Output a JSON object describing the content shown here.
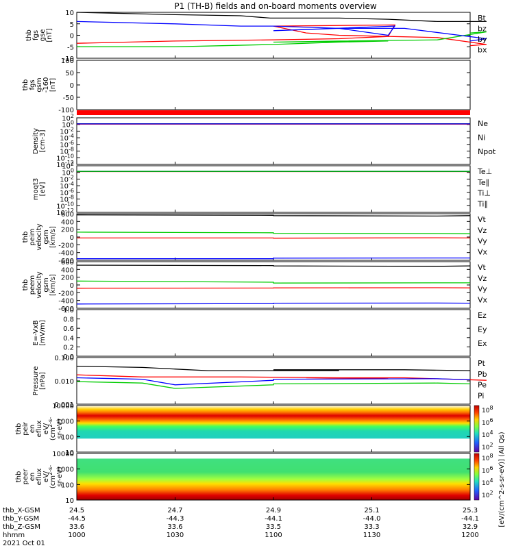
{
  "title": "P1  (TH-B) fields and on-board moments overview",
  "colors": {
    "black": "#000000",
    "red": "#ff0000",
    "green": "#00cc00",
    "blue": "#0000ff"
  },
  "chart_data": [
    {
      "type": "line",
      "id": "fgs",
      "ylabel_lines": [
        "thb",
        "fgs",
        "gse",
        "[nT]"
      ],
      "ylim": [
        -10,
        10
      ],
      "yticks": [
        "10",
        "5",
        "0",
        "-5",
        "-10"
      ],
      "series": [
        {
          "name": "Bt",
          "color": "black",
          "points": [
            [
              1000,
              10
            ],
            [
              1030,
              9
            ],
            [
              1050,
              8.5
            ],
            [
              1059,
              7.5
            ],
            [
              1070,
              7.5
            ],
            [
              1100,
              7.5
            ],
            [
              1120,
              7.5
            ],
            [
              1135,
              7
            ],
            [
              1150,
              6
            ],
            [
              1165,
              6
            ],
            [
              1200,
              6
            ]
          ]
        },
        {
          "name": "bz",
          "color": "red",
          "points": [
            [
              1000,
              -3.5
            ],
            [
              1030,
              -2.5
            ],
            [
              1060,
              -2
            ],
            [
              1080,
              -1.5
            ],
            [
              1095,
              -0.5
            ],
            [
              1097,
              4.5
            ],
            [
              1100,
              4
            ],
            [
              1110,
              1
            ],
            [
              1120,
              0
            ],
            [
              1150,
              -1
            ],
            [
              1165,
              -4
            ],
            [
              1200,
              -4.5
            ]
          ]
        },
        {
          "name": "by",
          "color": "green",
          "points": [
            [
              1000,
              -5
            ],
            [
              1030,
              -5
            ],
            [
              1060,
              -4
            ],
            [
              1080,
              -3
            ],
            [
              1095,
              -2.5
            ],
            [
              1100,
              -3
            ],
            [
              1120,
              -2.5
            ],
            [
              1150,
              -2
            ],
            [
              1165,
              1.5
            ],
            [
              1200,
              1
            ]
          ]
        },
        {
          "name": "bx",
          "color": "blue",
          "points": [
            [
              1000,
              6
            ],
            [
              1030,
              5
            ],
            [
              1050,
              4
            ],
            [
              1060,
              4
            ],
            [
              1080,
              3
            ],
            [
              1095,
              0
            ],
            [
              1097,
              4
            ],
            [
              1100,
              2
            ],
            [
              1120,
              3
            ],
            [
              1140,
              3
            ],
            [
              1165,
              -1.5
            ],
            [
              1200,
              -2.5
            ]
          ]
        }
      ]
    },
    {
      "type": "line",
      "id": "gsm",
      "ylabel_lines": [
        "thb",
        "fgs",
        "gsm",
        "-160",
        "[nT]"
      ],
      "ylim": [
        -130,
        110
      ],
      "yticks": [
        "100",
        "50",
        "0",
        "-50",
        "-100"
      ],
      "series": []
    },
    {
      "type": "line",
      "id": "density",
      "ylabel_lines": [
        "Density",
        "[cm-3]"
      ],
      "ylim_log": [
        -12,
        2
      ],
      "yticks": [
        "10^2",
        "10^0",
        "10^-2",
        "10^-4",
        "10^-6",
        "10^-8",
        "10^-10",
        "10^-12"
      ],
      "series": [
        {
          "name": "Ne",
          "color": "red",
          "points": [
            [
              1000,
              1.3
            ],
            [
              1200,
              1.3
            ]
          ]
        },
        {
          "name": "Ni",
          "color": "black",
          "points": [
            [
              1000,
              1.6
            ],
            [
              1200,
              1.6
            ]
          ]
        },
        {
          "name": "Npot",
          "color": "blue",
          "points": [
            [
              1000,
              1.5
            ],
            [
              1200,
              1.5
            ]
          ]
        }
      ]
    },
    {
      "type": "line",
      "id": "temp",
      "ylabel_lines": [
        "moqt3",
        "[eV]"
      ],
      "ylim_log": [
        -12,
        2
      ],
      "yticks": [
        "10^2",
        "10^0",
        "10^-2",
        "10^-4",
        "10^-6",
        "10^-8",
        "10^-10",
        "10^-12"
      ],
      "series": [
        {
          "name": "Te⊥",
          "color": "red",
          "points": [
            [
              1000,
              1.8
            ],
            [
              1200,
              1.8
            ]
          ]
        },
        {
          "name": "Te∥",
          "color": "black",
          "points": [
            [
              1000,
              2.0
            ],
            [
              1200,
              2.0
            ]
          ]
        },
        {
          "name": "Ti⊥",
          "color": "blue",
          "points": [
            [
              1000,
              2.3
            ],
            [
              1200,
              2.3
            ]
          ]
        },
        {
          "name": "Ti∥",
          "color": "green",
          "points": [
            [
              1000,
              2.1
            ],
            [
              1200,
              2.1
            ]
          ]
        }
      ]
    },
    {
      "type": "line",
      "id": "peim",
      "ylabel_lines": [
        "thb",
        "peim",
        "velocity",
        "gsm",
        "[km/s]"
      ],
      "ylim": [
        -600,
        600
      ],
      "yticks": [
        "600",
        "400",
        "200",
        "0",
        "-200",
        "-400",
        "-600"
      ],
      "series": [
        {
          "name": "Vt",
          "color": "black",
          "points": [
            [
              1000,
              570
            ],
            [
              1060,
              560
            ],
            [
              1100,
              550
            ],
            [
              1150,
              540
            ],
            [
              1200,
              550
            ]
          ]
        },
        {
          "name": "Vz",
          "color": "red",
          "points": [
            [
              1000,
              -25
            ],
            [
              1060,
              -25
            ],
            [
              1100,
              -30
            ],
            [
              1150,
              -20
            ],
            [
              1200,
              -25
            ]
          ]
        },
        {
          "name": "Vy",
          "color": "green",
          "points": [
            [
              1000,
              125
            ],
            [
              1060,
              110
            ],
            [
              1100,
              95
            ],
            [
              1150,
              90
            ],
            [
              1200,
              85
            ]
          ]
        },
        {
          "name": "Vx",
          "color": "blue",
          "points": [
            [
              1000,
              -560
            ],
            [
              1060,
              -560
            ],
            [
              1100,
              -545
            ],
            [
              1150,
              -540
            ],
            [
              1200,
              -540
            ]
          ]
        }
      ]
    },
    {
      "type": "line",
      "id": "peem",
      "ylabel_lines": [
        "thb",
        "peem",
        "velocity",
        "gsm",
        "[km/s]"
      ],
      "ylim": [
        -600,
        600
      ],
      "yticks": [
        "600",
        "400",
        "200",
        "0",
        "-200",
        "-400",
        "-600"
      ],
      "series": [
        {
          "name": "Vt",
          "color": "black",
          "points": [
            [
              1000,
              510
            ],
            [
              1060,
              500
            ],
            [
              1100,
              490
            ],
            [
              1150,
              480
            ],
            [
              1200,
              490
            ]
          ]
        },
        {
          "name": "Vz",
          "color": "red",
          "points": [
            [
              1000,
              -85
            ],
            [
              1060,
              -80
            ],
            [
              1100,
              -75
            ],
            [
              1150,
              -70
            ],
            [
              1200,
              -75
            ]
          ]
        },
        {
          "name": "Vy",
          "color": "green",
          "points": [
            [
              1000,
              100
            ],
            [
              1060,
              70
            ],
            [
              1100,
              50
            ],
            [
              1150,
              55
            ],
            [
              1200,
              55
            ]
          ]
        },
        {
          "name": "Vx",
          "color": "blue",
          "points": [
            [
              1000,
              -490
            ],
            [
              1060,
              -480
            ],
            [
              1100,
              -470
            ],
            [
              1150,
              -465
            ],
            [
              1200,
              -470
            ]
          ]
        }
      ]
    },
    {
      "type": "line",
      "id": "efield",
      "ylabel_lines": [
        "E=-VxB",
        "[mV/m]"
      ],
      "ylim": [
        0,
        1
      ],
      "yticks": [
        "1.0",
        "0.8",
        "0.6",
        "0.4",
        "0.2",
        "0.0"
      ],
      "series": [
        {
          "name": "Ez",
          "color": "red",
          "points": []
        },
        {
          "name": "Ey",
          "color": "green",
          "points": []
        },
        {
          "name": "Ex",
          "color": "blue",
          "points": []
        }
      ]
    },
    {
      "type": "line",
      "id": "pressure",
      "ylabel_lines": [
        "Pressure",
        "[nPa]"
      ],
      "ylim_log": [
        -3,
        -0.7
      ],
      "yticks": [
        "0.100",
        "0.010",
        "0.001"
      ],
      "series": [
        {
          "name": "Pt",
          "color": "black",
          "points": [
            [
              1000,
              0.075
            ],
            [
              1020,
              0.065
            ],
            [
              1040,
              0.045
            ],
            [
              1080,
              0.045
            ],
            [
              1100,
              0.05
            ],
            [
              1140,
              0.05
            ],
            [
              1160,
              0.045
            ],
            [
              1200,
              0.045
            ]
          ]
        },
        {
          "name": "Pb",
          "color": "red",
          "points": [
            [
              1000,
              0.028
            ],
            [
              1020,
              0.022
            ],
            [
              1050,
              0.022
            ],
            [
              1080,
              0.02
            ],
            [
              1095,
              0.018
            ],
            [
              1110,
              0.02
            ],
            [
              1140,
              0.02
            ],
            [
              1165,
              0.015
            ],
            [
              1200,
              0.016
            ]
          ]
        },
        {
          "name": "Pe",
          "color": "green",
          "points": [
            [
              1000,
              0.013
            ],
            [
              1020,
              0.011
            ],
            [
              1030,
              0.006
            ],
            [
              1060,
              0.009
            ],
            [
              1100,
              0.01
            ],
            [
              1150,
              0.011
            ],
            [
              1200,
              0.01
            ]
          ]
        },
        {
          "name": "Pi",
          "color": "blue",
          "points": [
            [
              1000,
              0.02
            ],
            [
              1020,
              0.017
            ],
            [
              1030,
              0.009
            ],
            [
              1060,
              0.015
            ],
            [
              1100,
              0.017
            ],
            [
              1150,
              0.018
            ],
            [
              1200,
              0.016
            ]
          ]
        }
      ]
    },
    {
      "type": "heatmap",
      "id": "peir",
      "ylabel_lines": [
        "thb",
        "peir",
        "en",
        "eflux",
        "eV/",
        "(cm^2-s-",
        "sr-eV)"
      ],
      "ylim_log": [
        0.8,
        4.2
      ],
      "yticks": [
        "10000",
        "1000",
        "100",
        "10"
      ]
    },
    {
      "type": "heatmap",
      "id": "peer",
      "ylabel_lines": [
        "thb",
        "peer",
        "en",
        "eflux",
        "eV/",
        "(cm^2-s-",
        "sr-eV)"
      ],
      "ylim_log": [
        0.8,
        4.2
      ],
      "yticks": [
        "10000",
        "1000",
        "100",
        "10"
      ]
    }
  ],
  "legends": {
    "fgs": [
      "Bt",
      "bz",
      "by",
      "bx"
    ],
    "density": [
      "Ne",
      "Ni",
      "Npot"
    ],
    "temp": [
      "Te⊥",
      "Te∥",
      "Ti⊥",
      "Ti∥"
    ],
    "peim": [
      "Vt",
      "Vz",
      "Vy",
      "Vx"
    ],
    "peem": [
      "Vt",
      "Vz",
      "Vy",
      "Vx"
    ],
    "efield": [
      "Ez",
      "Ey",
      "Ex"
    ],
    "pressure": [
      "Pt",
      "Pb",
      "Pe",
      "Pi"
    ]
  },
  "colorbar": {
    "ticks": [
      "10^8",
      "10^6",
      "10^4",
      "10^2"
    ],
    "label": "[eV/(cm^2-s-sr-eV)] (All Qs)"
  },
  "x_axis": {
    "row_labels": [
      "thb_X-GSM",
      "thb_Y-GSM",
      "thb_Z-GSM",
      "hhmm"
    ],
    "date": "2021 Oct 01",
    "columns": [
      [
        "24.5",
        "-44.5",
        "33.6",
        "1000"
      ],
      [
        "24.7",
        "-44.3",
        "33.6",
        "1030"
      ],
      [
        "24.9",
        "-44.1",
        "33.5",
        "1100"
      ],
      [
        "25.1",
        "-44.0",
        "33.3",
        "1130"
      ],
      [
        "25.3",
        "-44.1",
        "32.9",
        "1200"
      ]
    ]
  }
}
